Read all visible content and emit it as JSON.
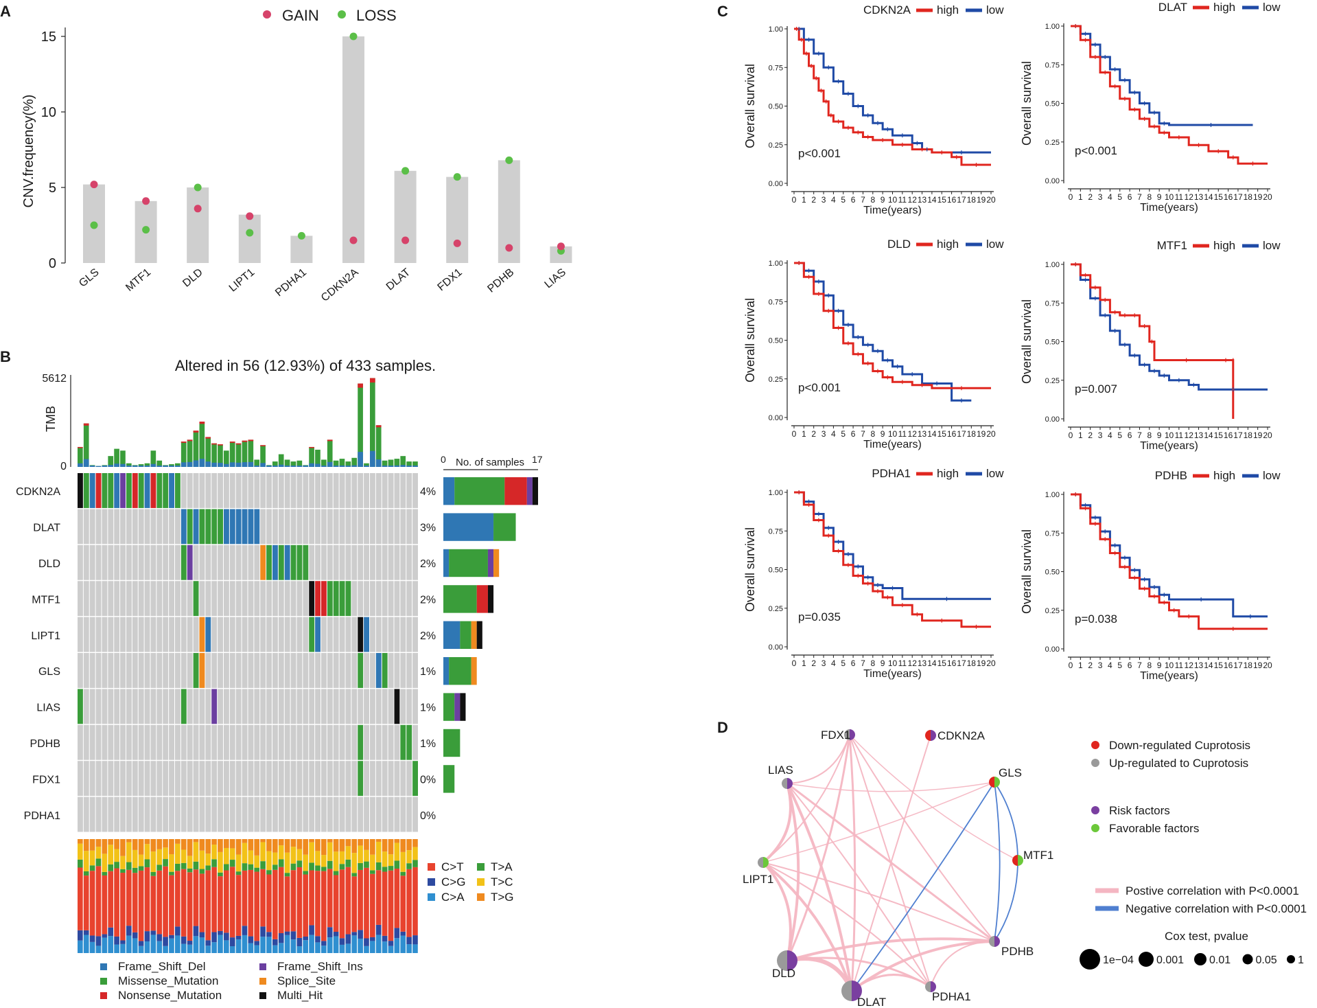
{
  "panels": {
    "a": "A",
    "b": "B",
    "c": "C",
    "d": "D"
  },
  "colors": {
    "gain": "#d6436a",
    "loss": "#5bbf48",
    "bar": "#cfcfcf",
    "frame_shift_del": "#2f77b4",
    "missense": "#3a9d3a",
    "nonsense": "#d62728",
    "frame_shift_ins": "#6b3fa0",
    "splice": "#ef8a1f",
    "multi_hit": "#111111",
    "CtoT": "#e8432e",
    "CtoG": "#2d4aa0",
    "CtoA": "#2f8fd0",
    "TtoA": "#3a9d3a",
    "TtoC": "#f2c218",
    "TtoG": "#ef8a1f",
    "km_high": "#e0261f",
    "km_low": "#1f4aa6",
    "down": "#e0261f",
    "up": "#9a9a9a",
    "risk": "#7a3fa0",
    "favorable": "#6cc83a",
    "pos": "#f4b6c2",
    "neg": "#4f7fd0"
  },
  "chart_data": [
    {
      "id": "A",
      "type": "bar",
      "title": "",
      "ylabel": "CNV.frequency(%)",
      "ylim": [
        0,
        15
      ],
      "yticks": [
        0,
        5,
        10,
        15
      ],
      "legend": [
        "GAIN",
        "LOSS"
      ],
      "categories": [
        "GLS",
        "MTF1",
        "DLD",
        "LIPT1",
        "PDHA1",
        "CDKN2A",
        "DLAT",
        "FDX1",
        "PDHB",
        "LIAS"
      ],
      "values": [
        5.2,
        4.1,
        5.0,
        3.2,
        1.8,
        15.0,
        6.1,
        5.7,
        6.8,
        1.1
      ],
      "series": [
        {
          "name": "GAIN",
          "values": [
            5.2,
            4.1,
            3.6,
            3.1,
            null,
            1.5,
            1.5,
            1.3,
            1.0,
            1.1
          ]
        },
        {
          "name": "LOSS",
          "values": [
            2.5,
            2.2,
            5.0,
            2.0,
            1.8,
            15.0,
            6.1,
            5.7,
            6.8,
            0.8
          ]
        }
      ]
    },
    {
      "id": "B",
      "type": "table",
      "title": "Altered in 56 (12.93%) of 433 samples.",
      "tmb_label": "TMB",
      "tmb_max": "5612",
      "tmb_min": "0",
      "samples_label": "No. of samples",
      "samples_axis": [
        "0",
        "17"
      ],
      "genes": [
        "CDKN2A",
        "DLAT",
        "DLD",
        "MTF1",
        "LIPT1",
        "GLS",
        "LIAS",
        "PDHB",
        "FDX1",
        "PDHA1"
      ],
      "percents": [
        "4%",
        "3%",
        "2%",
        "2%",
        "2%",
        "1%",
        "1%",
        "1%",
        "0%",
        "0%"
      ],
      "counts": [
        17,
        13,
        10,
        9,
        7,
        6,
        4,
        3,
        2,
        0
      ],
      "titv_legend": [
        "C>T",
        "T>A",
        "C>G",
        "T>C",
        "C>A",
        "T>G"
      ],
      "variant_legend": [
        "Frame_Shift_Del",
        "Frame_Shift_Ins",
        "Missense_Mutation",
        "Splice_Site",
        "Nonsense_Mutation",
        "Multi_Hit"
      ]
    },
    {
      "id": "C",
      "type": "line",
      "xlabel": "Time(years)",
      "ylabel": "Overall survival",
      "yticks": [
        "0.00",
        "0.25",
        "0.50",
        "0.75",
        "1.00"
      ],
      "xticks": [
        "0",
        "1",
        "2",
        "3",
        "4",
        "5",
        "6",
        "7",
        "8",
        "9",
        "10",
        "11",
        "12",
        "13",
        "14",
        "15",
        "16",
        "17",
        "18",
        "19",
        "20"
      ],
      "legend": [
        "high",
        "low"
      ],
      "plots": [
        {
          "gene": "CDKN2A",
          "p": "p<0.001",
          "high": [
            [
              0,
              1
            ],
            [
              0.5,
              0.93
            ],
            [
              1,
              0.84
            ],
            [
              1.5,
              0.76
            ],
            [
              2,
              0.68
            ],
            [
              2.5,
              0.6
            ],
            [
              3,
              0.53
            ],
            [
              3.5,
              0.44
            ],
            [
              4,
              0.4
            ],
            [
              5,
              0.36
            ],
            [
              6,
              0.33
            ],
            [
              7,
              0.3
            ],
            [
              8,
              0.28
            ],
            [
              10,
              0.25
            ],
            [
              12,
              0.22
            ],
            [
              14,
              0.2
            ],
            [
              16,
              0.17
            ],
            [
              17,
              0.12
            ],
            [
              20,
              0.12
            ]
          ],
          "low": [
            [
              0,
              1
            ],
            [
              1,
              0.93
            ],
            [
              2,
              0.84
            ],
            [
              3,
              0.75
            ],
            [
              4,
              0.66
            ],
            [
              5,
              0.58
            ],
            [
              6,
              0.5
            ],
            [
              7,
              0.44
            ],
            [
              8,
              0.39
            ],
            [
              9,
              0.35
            ],
            [
              10,
              0.31
            ],
            [
              12,
              0.26
            ],
            [
              13,
              0.22
            ],
            [
              14,
              0.2
            ],
            [
              20,
              0.2
            ]
          ]
        },
        {
          "gene": "DLAT",
          "p": "p<0.001",
          "high": [
            [
              0,
              1
            ],
            [
              1,
              0.91
            ],
            [
              2,
              0.8
            ],
            [
              3,
              0.7
            ],
            [
              4,
              0.61
            ],
            [
              5,
              0.53
            ],
            [
              6,
              0.46
            ],
            [
              7,
              0.4
            ],
            [
              8,
              0.35
            ],
            [
              9,
              0.31
            ],
            [
              10,
              0.28
            ],
            [
              12,
              0.23
            ],
            [
              14,
              0.19
            ],
            [
              16,
              0.15
            ],
            [
              17,
              0.11
            ],
            [
              20,
              0.11
            ]
          ],
          "low": [
            [
              0,
              1
            ],
            [
              1,
              0.95
            ],
            [
              2,
              0.88
            ],
            [
              3,
              0.8
            ],
            [
              4,
              0.72
            ],
            [
              5,
              0.65
            ],
            [
              6,
              0.57
            ],
            [
              7,
              0.5
            ],
            [
              8,
              0.44
            ],
            [
              9,
              0.37
            ],
            [
              10,
              0.36
            ],
            [
              18.5,
              0.36
            ]
          ]
        },
        {
          "gene": "DLD",
          "p": "p<0.001",
          "high": [
            [
              0,
              1
            ],
            [
              1,
              0.91
            ],
            [
              2,
              0.8
            ],
            [
              3,
              0.69
            ],
            [
              4,
              0.58
            ],
            [
              5,
              0.48
            ],
            [
              6,
              0.41
            ],
            [
              7,
              0.35
            ],
            [
              8,
              0.3
            ],
            [
              9,
              0.26
            ],
            [
              10,
              0.23
            ],
            [
              12,
              0.21
            ],
            [
              14,
              0.19
            ],
            [
              20,
              0.19
            ]
          ],
          "low": [
            [
              0,
              1
            ],
            [
              1,
              0.95
            ],
            [
              2,
              0.88
            ],
            [
              3,
              0.79
            ],
            [
              4,
              0.69
            ],
            [
              5,
              0.6
            ],
            [
              6,
              0.52
            ],
            [
              7,
              0.47
            ],
            [
              8,
              0.43
            ],
            [
              9,
              0.37
            ],
            [
              10,
              0.33
            ],
            [
              11,
              0.28
            ],
            [
              13,
              0.22
            ],
            [
              16,
              0.11
            ],
            [
              18,
              0.11
            ]
          ]
        },
        {
          "gene": "MTF1",
          "p": "p=0.007",
          "high": [
            [
              0,
              1
            ],
            [
              1,
              0.93
            ],
            [
              2,
              0.85
            ],
            [
              3,
              0.77
            ],
            [
              4,
              0.69
            ],
            [
              5,
              0.67
            ],
            [
              6,
              0.67
            ],
            [
              7,
              0.6
            ],
            [
              8,
              0.5
            ],
            [
              8.5,
              0.38
            ],
            [
              15,
              0.38
            ],
            [
              16.5,
              0.38
            ],
            [
              16.5,
              0.0
            ]
          ],
          "low": [
            [
              0,
              1
            ],
            [
              1,
              0.9
            ],
            [
              2,
              0.78
            ],
            [
              3,
              0.67
            ],
            [
              4,
              0.57
            ],
            [
              5,
              0.48
            ],
            [
              6,
              0.41
            ],
            [
              7,
              0.35
            ],
            [
              8,
              0.31
            ],
            [
              9,
              0.28
            ],
            [
              10,
              0.25
            ],
            [
              12,
              0.22
            ],
            [
              13,
              0.19
            ],
            [
              20,
              0.19
            ]
          ]
        },
        {
          "gene": "PDHA1",
          "p": "p=0.035",
          "high": [
            [
              0,
              1
            ],
            [
              1,
              0.92
            ],
            [
              2,
              0.82
            ],
            [
              3,
              0.72
            ],
            [
              4,
              0.62
            ],
            [
              5,
              0.53
            ],
            [
              6,
              0.46
            ],
            [
              7,
              0.41
            ],
            [
              8,
              0.36
            ],
            [
              9,
              0.32
            ],
            [
              10,
              0.27
            ],
            [
              12,
              0.21
            ],
            [
              13,
              0.17
            ],
            [
              17,
              0.13
            ],
            [
              20,
              0.13
            ]
          ],
          "low": [
            [
              0,
              1
            ],
            [
              1,
              0.94
            ],
            [
              2,
              0.86
            ],
            [
              3,
              0.77
            ],
            [
              4,
              0.68
            ],
            [
              5,
              0.6
            ],
            [
              6,
              0.52
            ],
            [
              7,
              0.45
            ],
            [
              8,
              0.4
            ],
            [
              9,
              0.38
            ],
            [
              11,
              0.37
            ],
            [
              11,
              0.31
            ],
            [
              20,
              0.31
            ]
          ]
        },
        {
          "gene": "PDHB",
          "p": "p=0.038",
          "high": [
            [
              0,
              1
            ],
            [
              1,
              0.91
            ],
            [
              2,
              0.81
            ],
            [
              3,
              0.71
            ],
            [
              4,
              0.62
            ],
            [
              5,
              0.53
            ],
            [
              6,
              0.46
            ],
            [
              7,
              0.39
            ],
            [
              8,
              0.34
            ],
            [
              9,
              0.3
            ],
            [
              10,
              0.25
            ],
            [
              11,
              0.21
            ],
            [
              13,
              0.13
            ],
            [
              20,
              0.13
            ]
          ],
          "low": [
            [
              0,
              1
            ],
            [
              1,
              0.93
            ],
            [
              2,
              0.85
            ],
            [
              3,
              0.76
            ],
            [
              4,
              0.67
            ],
            [
              5,
              0.59
            ],
            [
              6,
              0.51
            ],
            [
              7,
              0.45
            ],
            [
              8,
              0.4
            ],
            [
              9,
              0.35
            ],
            [
              10,
              0.32
            ],
            [
              16.5,
              0.31
            ],
            [
              16.5,
              0.21
            ],
            [
              20,
              0.21
            ]
          ]
        }
      ]
    },
    {
      "id": "D",
      "type": "network",
      "nodes": [
        {
          "name": "FDX1",
          "reg": "up",
          "factor": "risk",
          "size": 0.05
        },
        {
          "name": "CDKN2A",
          "reg": "down",
          "factor": "risk",
          "size": 0.05
        },
        {
          "name": "LIAS",
          "reg": "up",
          "factor": "risk",
          "size": 0.05
        },
        {
          "name": "GLS",
          "reg": "down",
          "factor": "favorable",
          "size": 0.05
        },
        {
          "name": "LIPT1",
          "reg": "up",
          "factor": "favorable",
          "size": 0.05
        },
        {
          "name": "MTF1",
          "reg": "down",
          "factor": "favorable",
          "size": 0.05
        },
        {
          "name": "DLD",
          "reg": "up",
          "factor": "risk",
          "size": 0.0001
        },
        {
          "name": "PDHB",
          "reg": "up",
          "factor": "risk",
          "size": 0.05
        },
        {
          "name": "DLAT",
          "reg": "up",
          "factor": "risk",
          "size": 0.0001
        },
        {
          "name": "PDHA1",
          "reg": "up",
          "factor": "risk",
          "size": 0.05
        }
      ],
      "legend": {
        "reg": [
          "Down-regulated Cuprotosis",
          "Up-regulated to Cuprotosis"
        ],
        "factor": [
          "Risk factors",
          "Favorable factors"
        ],
        "corr": [
          "Postive correlation with P<0.0001",
          "Negative correlation with P<0.0001"
        ],
        "cox_title": "Cox test, pvalue",
        "cox": [
          "1e−04",
          "0.001",
          "0.01",
          "0.05",
          "1"
        ]
      }
    }
  ]
}
